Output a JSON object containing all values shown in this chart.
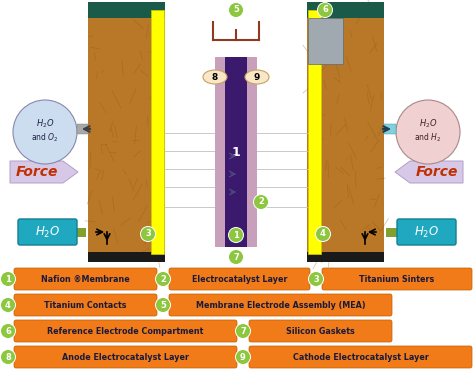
{
  "bg_color": "#ffffff",
  "legend_items": [
    {
      "num": "1",
      "text": "Nafion ®Membrane"
    },
    {
      "num": "2",
      "text": "Electrocatalyst Layer"
    },
    {
      "num": "3",
      "text": "Titanium Sinters"
    },
    {
      "num": "4",
      "text": "Titanium Contacts"
    },
    {
      "num": "5",
      "text": "Membrane Electrode Assembly (MEA)"
    },
    {
      "num": "6",
      "text": "Reference Electrode Compartment"
    },
    {
      "num": "7",
      "text": "Silicon Gaskets"
    },
    {
      "num": "8",
      "text": "Anode Electrocatalyst Layer"
    },
    {
      "num": "9",
      "text": "Cathode Electrocatalyst Layer"
    }
  ],
  "orange_color": "#f07b18",
  "green_circle_color": "#8dc63f",
  "yellow_color": "#ffff00",
  "purple_dark": "#3b1a6e",
  "pink_color": "#c8a0bc",
  "teal_pipe_color": "#80d0e0",
  "gray_pipe_color": "#a8a8a8",
  "force_color": "#c03000",
  "force_arrow_fill": "#d8c8e8",
  "force_arrow_edge": "#b0a0c8",
  "h2o_left_fill": "#ccddf0",
  "h2o_right_fill": "#f0d0d0",
  "h2o_box_color": "#20a8c0",
  "wood_base": "#b87828",
  "wood_dark": "#8b5a18",
  "dark_teal_top": "#1a5a48",
  "yellow_ec": "#cccc00",
  "green_bar": "#80a030",
  "gray_ref": "#a0a8b0",
  "gray_ref_dark": "#606870",
  "bracket_color": "#903820",
  "grid_color": "#c0c0c0",
  "arrow_inner": "#505080"
}
